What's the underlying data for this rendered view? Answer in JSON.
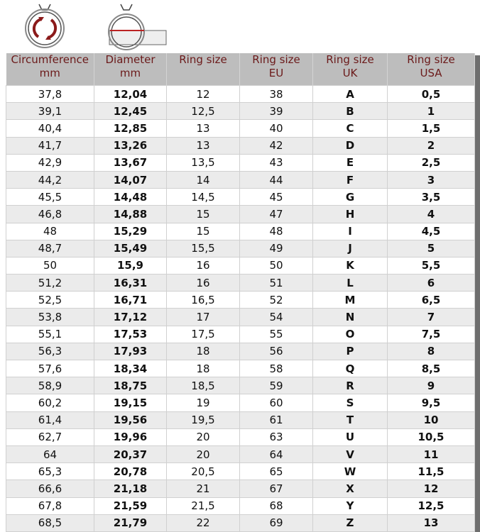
{
  "headers": [
    [
      "Circumference",
      "mm"
    ],
    [
      "Diameter",
      "mm"
    ],
    [
      "Ring size",
      ""
    ],
    [
      "Ring size",
      "EU"
    ],
    [
      "Ring size",
      "UK"
    ],
    [
      "Ring size",
      "USA"
    ]
  ],
  "rows": [
    [
      "37,8",
      "12,04",
      "12",
      "38",
      "A",
      "0,5"
    ],
    [
      "39,1",
      "12,45",
      "12,5",
      "39",
      "B",
      "1"
    ],
    [
      "40,4",
      "12,85",
      "13",
      "40",
      "C",
      "1,5"
    ],
    [
      "41,7",
      "13,26",
      "13",
      "42",
      "D",
      "2"
    ],
    [
      "42,9",
      "13,67",
      "13,5",
      "43",
      "E",
      "2,5"
    ],
    [
      "44,2",
      "14,07",
      "14",
      "44",
      "F",
      "3"
    ],
    [
      "45,5",
      "14,48",
      "14,5",
      "45",
      "G",
      "3,5"
    ],
    [
      "46,8",
      "14,88",
      "15",
      "47",
      "H",
      "4"
    ],
    [
      "48",
      "15,29",
      "15",
      "48",
      "I",
      "4,5"
    ],
    [
      "48,7",
      "15,49",
      "15,5",
      "49",
      "J",
      "5"
    ],
    [
      "50",
      "15,9",
      "16",
      "50",
      "K",
      "5,5"
    ],
    [
      "51,2",
      "16,31",
      "16",
      "51",
      "L",
      "6"
    ],
    [
      "52,5",
      "16,71",
      "16,5",
      "52",
      "M",
      "6,5"
    ],
    [
      "53,8",
      "17,12",
      "17",
      "54",
      "N",
      "7"
    ],
    [
      "55,1",
      "17,53",
      "17,5",
      "55",
      "O",
      "7,5"
    ],
    [
      "56,3",
      "17,93",
      "18",
      "56",
      "P",
      "8"
    ],
    [
      "57,6",
      "18,34",
      "18",
      "58",
      "Q",
      "8,5"
    ],
    [
      "58,9",
      "18,75",
      "18,5",
      "59",
      "R",
      "9"
    ],
    [
      "60,2",
      "19,15",
      "19",
      "60",
      "S",
      "9,5"
    ],
    [
      "61,4",
      "19,56",
      "19,5",
      "61",
      "T",
      "10"
    ],
    [
      "62,7",
      "19,96",
      "20",
      "63",
      "U",
      "10,5"
    ],
    [
      "64",
      "20,37",
      "20",
      "64",
      "V",
      "11"
    ],
    [
      "65,3",
      "20,78",
      "20,5",
      "65",
      "W",
      "11,5"
    ],
    [
      "66,6",
      "21,18",
      "21",
      "67",
      "X",
      "12"
    ],
    [
      "67,8",
      "21,59",
      "21,5",
      "68",
      "Y",
      "12,5"
    ],
    [
      "68,5",
      "21,79",
      "22",
      "69",
      "Z",
      "13"
    ]
  ],
  "colors": {
    "header_bg": "#bdbdbd",
    "header_text": "#6b1a1a",
    "accent": "#8b1a1a"
  },
  "icons": [
    "ring-circumference-icon",
    "ring-diameter-ruler-icon"
  ]
}
